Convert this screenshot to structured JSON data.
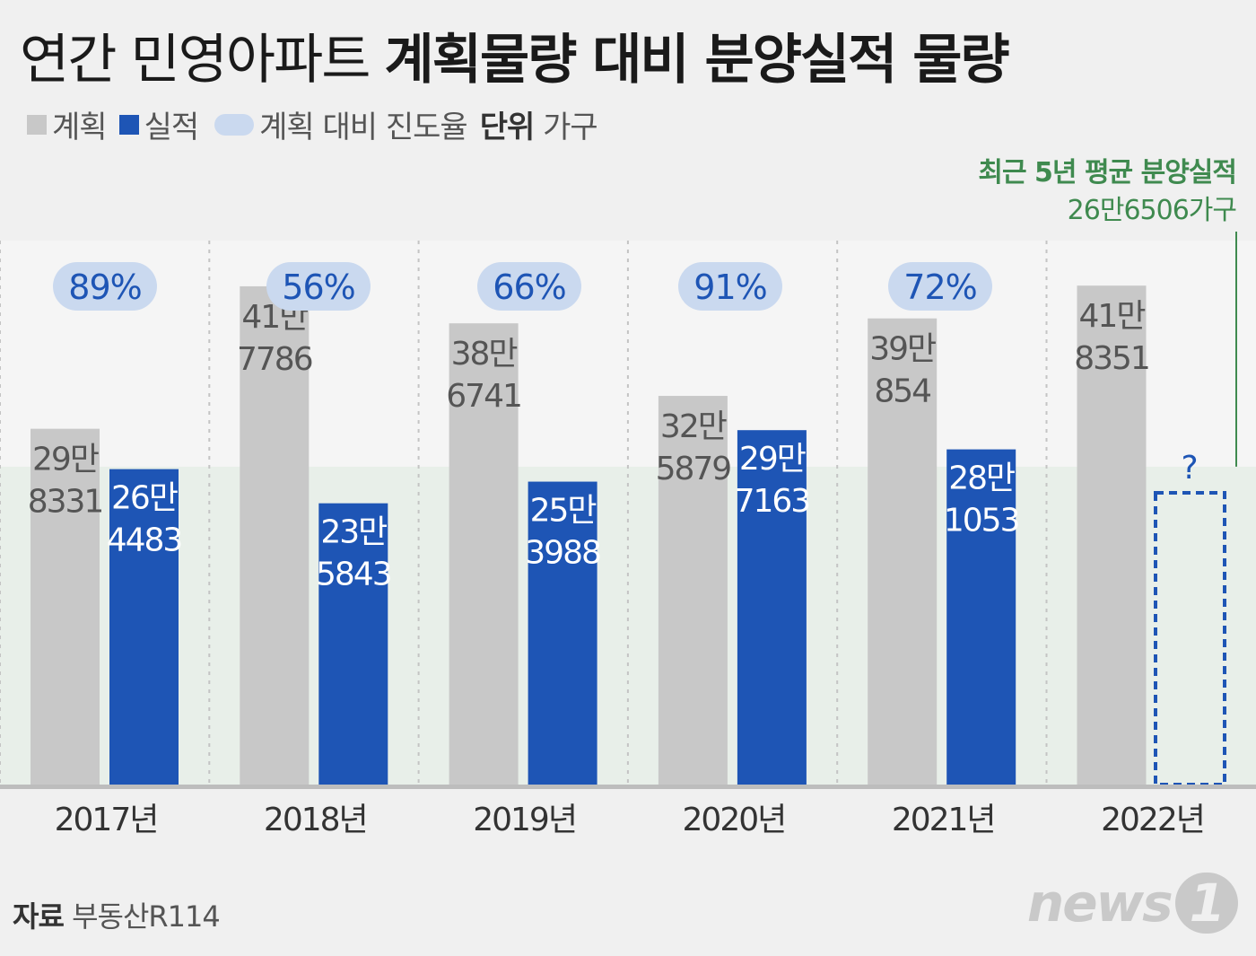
{
  "title": {
    "regular": "연간 민영아파트 ",
    "bold": "계획물량 대비 분양실적 물량"
  },
  "legend": {
    "plan": "계획",
    "actual": "실적",
    "rate": "계획 대비 진도율",
    "unit_label": "단위",
    "unit": "가구"
  },
  "average": {
    "label": "최근 5년 평균 분양실적",
    "value_text": "26만6506가구"
  },
  "source": {
    "label": "자료",
    "name": "부동산R114"
  },
  "logo": {
    "text": "news",
    "mark": "1"
  },
  "colors": {
    "plan": "#c8c8c8",
    "actual": "#1e55b5",
    "rate_bg": "#cad9ef",
    "rate_text": "#1e55b5",
    "average": "#3f8a4f"
  },
  "chart_data": {
    "type": "bar",
    "categories": [
      "2017년",
      "2018년",
      "2019년",
      "2020년",
      "2021년",
      "2022년"
    ],
    "series": [
      {
        "name": "계획",
        "values": [
          298331,
          417786,
          386741,
          325879,
          390854,
          418351
        ],
        "labels": [
          [
            "29만",
            "8331"
          ],
          [
            "41만",
            "7786"
          ],
          [
            "38만",
            "6741"
          ],
          [
            "32만",
            "5879"
          ],
          [
            "39만",
            "854"
          ],
          [
            "41만",
            "8351"
          ]
        ]
      },
      {
        "name": "실적",
        "values": [
          264483,
          235843,
          253988,
          297163,
          281053,
          null
        ],
        "labels": [
          [
            "26만",
            "4483"
          ],
          [
            "23만",
            "5843"
          ],
          [
            "25만",
            "3988"
          ],
          [
            "29만",
            "7163"
          ],
          [
            "28만",
            "1053"
          ],
          [
            "?"
          ]
        ]
      }
    ],
    "rates": [
      "89%",
      "56%",
      "66%",
      "91%",
      "72%",
      ""
    ],
    "average_line": 266506,
    "ylim": [
      0,
      560000
    ],
    "ylabel": "가구"
  }
}
